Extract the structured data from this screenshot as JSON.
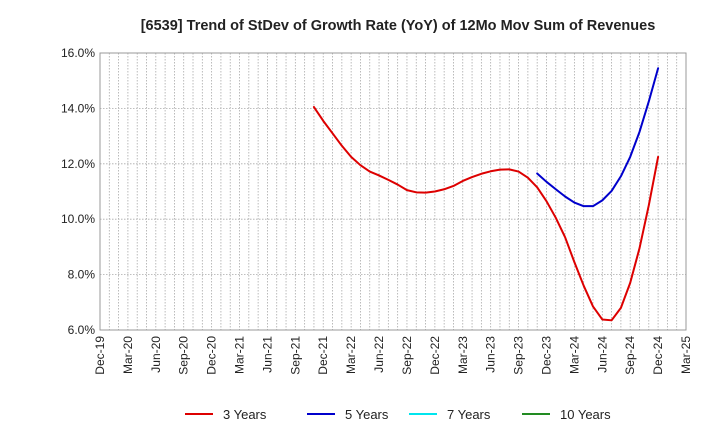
{
  "chart_data": {
    "type": "line",
    "title": "[6539]  Trend of StDev of Growth Rate (YoY) of 12Mo Mov Sum of Revenues",
    "xlabel": "",
    "ylabel": "",
    "ylim": [
      6.0,
      16.0
    ],
    "yticks": [
      6.0,
      8.0,
      10.0,
      12.0,
      14.0,
      16.0
    ],
    "ytick_labels": [
      "6.0%",
      "8.0%",
      "10.0%",
      "12.0%",
      "14.0%",
      "16.0%"
    ],
    "xtick_labels": [
      "Dec-19",
      "Mar-20",
      "Jun-20",
      "Sep-20",
      "Dec-20",
      "Mar-21",
      "Jun-21",
      "Sep-21",
      "Dec-21",
      "Mar-22",
      "Jun-22",
      "Sep-22",
      "Dec-22",
      "Mar-23",
      "Jun-23",
      "Sep-23",
      "Dec-23",
      "Mar-24",
      "Jun-24",
      "Sep-24",
      "Dec-24",
      "Mar-25"
    ],
    "x_months": [
      "Dec-19",
      "Jan-20",
      "Feb-20",
      "Mar-20",
      "Apr-20",
      "May-20",
      "Jun-20",
      "Jul-20",
      "Aug-20",
      "Sep-20",
      "Oct-20",
      "Nov-20",
      "Dec-20",
      "Jan-21",
      "Feb-21",
      "Mar-21",
      "Apr-21",
      "May-21",
      "Jun-21",
      "Jul-21",
      "Aug-21",
      "Sep-21",
      "Oct-21",
      "Nov-21",
      "Dec-21",
      "Jan-22",
      "Feb-22",
      "Mar-22",
      "Apr-22",
      "May-22",
      "Jun-22",
      "Jul-22",
      "Aug-22",
      "Sep-22",
      "Oct-22",
      "Nov-22",
      "Dec-22",
      "Jan-23",
      "Feb-23",
      "Mar-23",
      "Apr-23",
      "May-23",
      "Jun-23",
      "Jul-23",
      "Aug-23",
      "Sep-23",
      "Oct-23",
      "Nov-23",
      "Dec-23",
      "Jan-24",
      "Feb-24",
      "Mar-24",
      "Apr-24",
      "May-24",
      "Jun-24",
      "Jul-24",
      "Aug-24",
      "Sep-24",
      "Oct-24",
      "Nov-24",
      "Dec-24",
      "Jan-25",
      "Feb-25",
      "Mar-25"
    ],
    "series": [
      {
        "name": "3 Years",
        "color": "#dd0000",
        "start_month": "Nov-21",
        "values": [
          14.05,
          13.55,
          13.1,
          12.65,
          12.25,
          11.95,
          11.72,
          11.58,
          11.42,
          11.25,
          11.05,
          10.97,
          10.96,
          11.0,
          11.08,
          11.2,
          11.38,
          11.52,
          11.64,
          11.73,
          11.79,
          11.8,
          11.72,
          11.5,
          11.15,
          10.65,
          10.05,
          9.35,
          8.45,
          7.6,
          6.85,
          6.38,
          6.35,
          6.8,
          7.7,
          8.95,
          10.5,
          12.25
        ]
      },
      {
        "name": "5 Years",
        "color": "#0000cc",
        "start_month": "Nov-23",
        "values": [
          11.65,
          11.35,
          11.08,
          10.82,
          10.6,
          10.47,
          10.47,
          10.68,
          11.02,
          11.55,
          12.25,
          13.15,
          14.25,
          15.45
        ]
      },
      {
        "name": "7 Years",
        "color": "#00e5ee",
        "start_month": "",
        "values": []
      },
      {
        "name": "10 Years",
        "color": "#228b22",
        "start_month": "",
        "values": []
      }
    ],
    "legend_position": "bottom",
    "grid": true
  }
}
